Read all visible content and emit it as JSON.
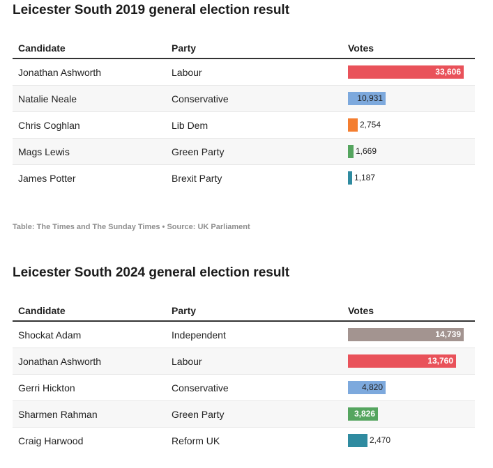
{
  "tables": [
    {
      "title": "Leicester South 2019 general election result",
      "headers": {
        "candidate": "Candidate",
        "party": "Party",
        "votes": "Votes"
      },
      "max_votes": 33606,
      "rows": [
        {
          "candidate": "Jonathan Ashworth",
          "party": "Labour",
          "votes": 33606,
          "votes_label": "33,606",
          "color": "#e9525a",
          "label_style": "inside"
        },
        {
          "candidate": "Natalie Neale",
          "party": "Conservative",
          "votes": 10931,
          "votes_label": "10,931",
          "color": "#7da9dd",
          "label_style": "inside-dark"
        },
        {
          "candidate": "Chris Coghlan",
          "party": "Lib Dem",
          "votes": 2754,
          "votes_label": "2,754",
          "color": "#f47e30",
          "label_style": "outside"
        },
        {
          "candidate": "Mags Lewis",
          "party": "Green Party",
          "votes": 1669,
          "votes_label": "1,669",
          "color": "#55a55f",
          "label_style": "outside"
        },
        {
          "candidate": "James Potter",
          "party": "Brexit Party",
          "votes": 1187,
          "votes_label": "1,187",
          "color": "#2f8ba0",
          "label_style": "outside"
        }
      ],
      "footnote": "Table: The Times and The Sunday Times • Source: UK Parliament"
    },
    {
      "title": "Leicester South 2024 general election result",
      "headers": {
        "candidate": "Candidate",
        "party": "Party",
        "votes": "Votes"
      },
      "max_votes": 14739,
      "rows": [
        {
          "candidate": "Shockat Adam",
          "party": "Independent",
          "votes": 14739,
          "votes_label": "14,739",
          "color": "#a39490",
          "label_style": "inside"
        },
        {
          "candidate": "Jonathan Ashworth",
          "party": "Labour",
          "votes": 13760,
          "votes_label": "13,760",
          "color": "#e9525a",
          "label_style": "inside"
        },
        {
          "candidate": "Gerri Hickton",
          "party": "Conservative",
          "votes": 4820,
          "votes_label": "4,820",
          "color": "#7da9dd",
          "label_style": "inside-dark"
        },
        {
          "candidate": "Sharmen Rahman",
          "party": "Green Party",
          "votes": 3826,
          "votes_label": "3,826",
          "color": "#55a55f",
          "label_style": "inside"
        },
        {
          "candidate": "Craig Harwood",
          "party": "Reform UK",
          "votes": 2470,
          "votes_label": "2,470",
          "color": "#2f8ba0",
          "label_style": "outside"
        }
      ]
    }
  ]
}
